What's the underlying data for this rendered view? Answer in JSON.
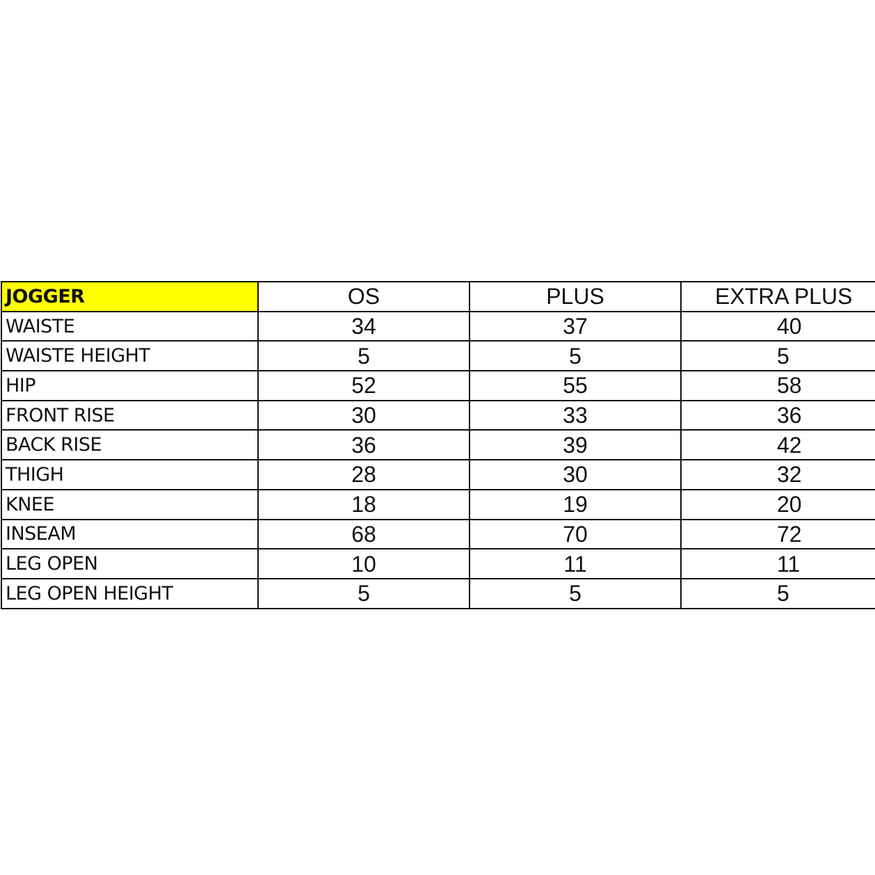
{
  "table": {
    "title": "JOGGER",
    "title_bg": "#ffff00",
    "columns": [
      "OS",
      "PLUS",
      "EXTRA PLUS"
    ],
    "rows": [
      {
        "label": "WAISTE",
        "values": [
          "34",
          "37",
          "40"
        ]
      },
      {
        "label": "WAISTE HEIGHT",
        "values": [
          "5",
          "5",
          "5"
        ]
      },
      {
        "label": "HIP",
        "values": [
          "52",
          "55",
          "58"
        ]
      },
      {
        "label": "FRONT RISE",
        "values": [
          "30",
          "33",
          "36"
        ]
      },
      {
        "label": "BACK RISE",
        "values": [
          "36",
          "39",
          "42"
        ]
      },
      {
        "label": "THIGH",
        "values": [
          "28",
          "30",
          "32"
        ]
      },
      {
        "label": "KNEE",
        "values": [
          "18",
          "19",
          "20"
        ]
      },
      {
        "label": "INSEAM",
        "values": [
          "68",
          "70",
          "72"
        ]
      },
      {
        "label": "LEG OPEN",
        "values": [
          "10",
          "11",
          "11"
        ]
      },
      {
        "label": "LEG OPEN HEIGHT",
        "values": [
          "5",
          "5",
          "5"
        ]
      }
    ]
  }
}
